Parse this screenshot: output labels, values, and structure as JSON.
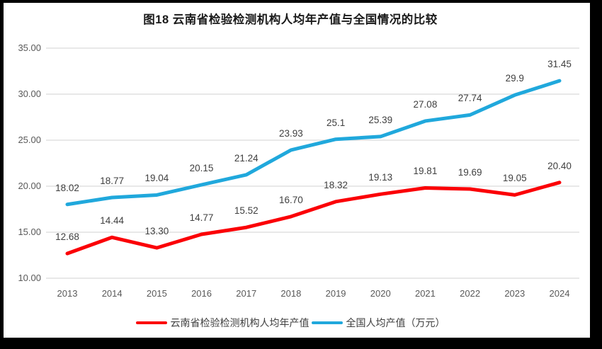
{
  "frame": {
    "border_color": "#000000",
    "canvas_color": "#ffffff"
  },
  "colors": {
    "gridline": "#d9d9d9",
    "axis_text": "#595959",
    "data_label_text": "#3f3f3f",
    "title_text": "#1a1a1a",
    "yunnan_red": "#fb0006",
    "national_blue": "#20a8dc"
  },
  "chart_data": {
    "type": "line",
    "title": "图18  云南省检验检测机构人均年产值与全国情况的比较",
    "xlabel": "",
    "ylabel": "",
    "categories": [
      "2013",
      "2014",
      "2015",
      "2016",
      "2017",
      "2018",
      "2019",
      "2020",
      "2021",
      "2022",
      "2023",
      "2024"
    ],
    "ylim": [
      10,
      35
    ],
    "y_tick_values": [
      35,
      30,
      25,
      20,
      15,
      10
    ],
    "y_tick_labels": [
      "35.00",
      "30.00",
      "25.00",
      "20.00",
      "15.00",
      "10.00"
    ],
    "grid": true,
    "legend_position": "bottom",
    "series": [
      {
        "name": "云南省检验检测机构人均年产值",
        "color": "#fb0006",
        "values": [
          12.68,
          14.44,
          13.3,
          14.77,
          15.52,
          16.7,
          18.32,
          19.13,
          19.81,
          19.69,
          19.05,
          20.4
        ],
        "labels": [
          "12.68",
          "14.44",
          "13.30",
          "14.77",
          "15.52",
          "16.70",
          "18.32",
          "19.13",
          "19.81",
          "19.69",
          "19.05",
          "20.40"
        ]
      },
      {
        "name": "全国人均产值（万元）",
        "color": "#20a8dc",
        "values": [
          18.02,
          18.77,
          19.04,
          20.15,
          21.24,
          23.93,
          25.1,
          25.39,
          27.08,
          27.74,
          29.9,
          31.45
        ],
        "labels": [
          "18.02",
          "18.77",
          "19.04",
          "20.15",
          "21.24",
          "23.93",
          "25.1",
          "25.39",
          "27.08",
          "27.74",
          "29.9",
          "31.45"
        ]
      }
    ]
  }
}
